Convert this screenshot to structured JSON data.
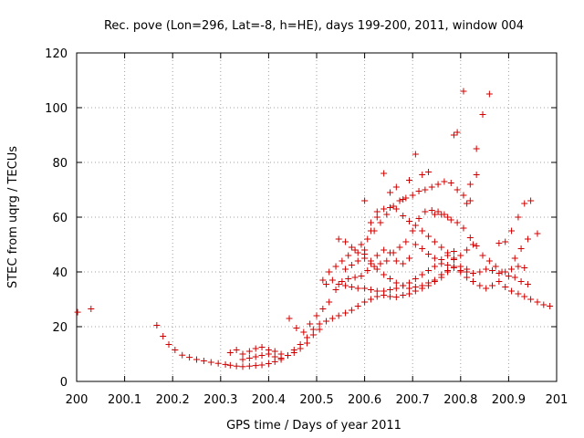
{
  "chart_data": {
    "type": "scatter",
    "title": "Rec. pove (Lon=296, Lat=-8, h=HE), days 199-200, 2011, window 004",
    "xlabel": "GPS time / Days of year 2011",
    "ylabel": "STEC from uqrg / TECUs",
    "xlim": [
      200,
      201
    ],
    "ylim": [
      0,
      120
    ],
    "xticks": [
      "200",
      "200.1",
      "200.2",
      "200.3",
      "200.4",
      "200.5",
      "200.6",
      "200.7",
      "200.8",
      "200.9",
      "201"
    ],
    "yticks": [
      "0",
      "20",
      "40",
      "60",
      "80",
      "100",
      "120"
    ],
    "grid": true,
    "marker": "+",
    "color": "#d00000",
    "series": [
      {
        "name": "STEC",
        "points": [
          [
            200.002,
            25.3
          ],
          [
            200.03,
            26.5
          ],
          [
            200.167,
            20.5
          ],
          [
            200.18,
            16.5
          ],
          [
            200.192,
            13.5
          ],
          [
            200.205,
            11.5
          ],
          [
            200.22,
            9.6
          ],
          [
            200.235,
            8.8
          ],
          [
            200.25,
            8.0
          ],
          [
            200.265,
            7.5
          ],
          [
            200.28,
            7.0
          ],
          [
            200.295,
            6.6
          ],
          [
            200.31,
            6.2
          ],
          [
            200.32,
            5.9
          ],
          [
            200.333,
            5.6
          ],
          [
            200.346,
            5.4
          ],
          [
            200.36,
            5.6
          ],
          [
            200.373,
            5.8
          ],
          [
            200.386,
            6.0
          ],
          [
            200.4,
            6.5
          ],
          [
            200.413,
            7.2
          ],
          [
            200.426,
            8.0
          ],
          [
            200.44,
            9.5
          ],
          [
            200.453,
            11.5
          ],
          [
            200.466,
            13.5
          ],
          [
            200.48,
            16.0
          ],
          [
            200.493,
            19.0
          ],
          [
            200.506,
            21.0
          ],
          [
            200.52,
            22.0
          ],
          [
            200.533,
            23.0
          ],
          [
            200.546,
            24.0
          ],
          [
            200.56,
            25.0
          ],
          [
            200.573,
            26.0
          ],
          [
            200.586,
            27.5
          ],
          [
            200.6,
            29.0
          ],
          [
            200.613,
            30.0
          ],
          [
            200.626,
            31.0
          ],
          [
            200.64,
            31.5
          ],
          [
            200.653,
            31.0
          ],
          [
            200.666,
            30.8
          ],
          [
            200.68,
            31.5
          ],
          [
            200.693,
            32.0
          ],
          [
            200.706,
            33.0
          ],
          [
            200.72,
            34.0
          ],
          [
            200.733,
            35.0
          ],
          [
            200.746,
            36.5
          ],
          [
            200.76,
            38.0
          ],
          [
            200.773,
            40.0
          ],
          [
            200.786,
            42.0
          ],
          [
            200.8,
            40.0
          ],
          [
            200.813,
            38.0
          ],
          [
            200.826,
            36.5
          ],
          [
            200.84,
            35.0
          ],
          [
            200.853,
            34.0
          ],
          [
            200.866,
            35.0
          ],
          [
            200.88,
            36.5
          ],
          [
            200.893,
            34.5
          ],
          [
            200.906,
            33.0
          ],
          [
            200.92,
            32.0
          ],
          [
            200.933,
            31.0
          ],
          [
            200.946,
            30.0
          ],
          [
            200.96,
            29.0
          ],
          [
            200.973,
            28.0
          ],
          [
            200.986,
            27.5
          ],
          [
            200.32,
            10.5
          ],
          [
            200.333,
            11.5
          ],
          [
            200.346,
            10.0
          ],
          [
            200.36,
            11.0
          ],
          [
            200.373,
            12.0
          ],
          [
            200.386,
            12.5
          ],
          [
            200.4,
            11.5
          ],
          [
            200.413,
            11.0
          ],
          [
            200.426,
            10.0
          ],
          [
            200.44,
            9.5
          ],
          [
            200.453,
            10.5
          ],
          [
            200.466,
            12.0
          ],
          [
            200.48,
            14.0
          ],
          [
            200.493,
            17.0
          ],
          [
            200.506,
            19.0
          ],
          [
            200.346,
            8.0
          ],
          [
            200.36,
            8.5
          ],
          [
            200.373,
            9.0
          ],
          [
            200.386,
            9.5
          ],
          [
            200.4,
            10.0
          ],
          [
            200.413,
            9.0
          ],
          [
            200.426,
            8.5
          ],
          [
            200.443,
            23.0
          ],
          [
            200.458,
            19.5
          ],
          [
            200.473,
            18.0
          ],
          [
            200.486,
            21.0
          ],
          [
            200.5,
            24.0
          ],
          [
            200.513,
            26.5
          ],
          [
            200.526,
            29.0
          ],
          [
            200.54,
            33.5
          ],
          [
            200.553,
            36.5
          ],
          [
            200.566,
            37.5
          ],
          [
            200.58,
            38.0
          ],
          [
            200.593,
            38.5
          ],
          [
            200.606,
            40.5
          ],
          [
            200.62,
            42.0
          ],
          [
            200.633,
            43.0
          ],
          [
            200.646,
            44.0
          ],
          [
            200.66,
            47.0
          ],
          [
            200.673,
            49.0
          ],
          [
            200.686,
            51.0
          ],
          [
            200.7,
            55.0
          ],
          [
            200.713,
            59.5
          ],
          [
            200.726,
            62.0
          ],
          [
            200.74,
            62.5
          ],
          [
            200.753,
            62.0
          ],
          [
            200.766,
            61.0
          ],
          [
            200.78,
            59.0
          ],
          [
            200.793,
            58.0
          ],
          [
            200.806,
            56.0
          ],
          [
            200.82,
            52.5
          ],
          [
            200.833,
            49.5
          ],
          [
            200.846,
            46.0
          ],
          [
            200.86,
            44.0
          ],
          [
            200.873,
            42.0
          ],
          [
            200.886,
            40.0
          ],
          [
            200.9,
            38.5
          ],
          [
            200.913,
            38.0
          ],
          [
            200.926,
            36.5
          ],
          [
            200.94,
            35.5
          ],
          [
            200.513,
            37.0
          ],
          [
            200.526,
            40.0
          ],
          [
            200.54,
            42.0
          ],
          [
            200.553,
            44.0
          ],
          [
            200.566,
            46.0
          ],
          [
            200.58,
            48.0
          ],
          [
            200.593,
            50.0
          ],
          [
            200.606,
            52.0
          ],
          [
            200.62,
            55.0
          ],
          [
            200.633,
            58.0
          ],
          [
            200.646,
            61.0
          ],
          [
            200.66,
            64.0
          ],
          [
            200.673,
            66.0
          ],
          [
            200.686,
            67.0
          ],
          [
            200.7,
            68.0
          ],
          [
            200.713,
            69.5
          ],
          [
            200.726,
            70.0
          ],
          [
            200.74,
            71.0
          ],
          [
            200.753,
            72.0
          ],
          [
            200.766,
            73.0
          ],
          [
            200.78,
            72.5
          ],
          [
            200.793,
            70.0
          ],
          [
            200.806,
            68.0
          ],
          [
            200.82,
            66.0
          ],
          [
            200.546,
            52.0
          ],
          [
            200.56,
            51.0
          ],
          [
            200.573,
            49.0
          ],
          [
            200.586,
            47.0
          ],
          [
            200.6,
            45.0
          ],
          [
            200.613,
            43.0
          ],
          [
            200.626,
            41.0
          ],
          [
            200.64,
            39.0
          ],
          [
            200.653,
            37.5
          ],
          [
            200.666,
            36.0
          ],
          [
            200.68,
            35.0
          ],
          [
            200.693,
            34.0
          ],
          [
            200.706,
            34.5
          ],
          [
            200.72,
            35.0
          ],
          [
            200.733,
            36.0
          ],
          [
            200.746,
            37.0
          ],
          [
            200.76,
            39.0
          ],
          [
            200.773,
            40.5
          ],
          [
            200.786,
            41.5
          ],
          [
            200.8,
            40.5
          ],
          [
            200.813,
            40.0
          ],
          [
            200.826,
            39.5
          ],
          [
            200.84,
            40.0
          ],
          [
            200.853,
            41.0
          ],
          [
            200.866,
            40.5
          ],
          [
            200.88,
            39.5
          ],
          [
            200.893,
            40.0
          ],
          [
            200.906,
            41.0
          ],
          [
            200.92,
            42.0
          ],
          [
            200.933,
            41.5
          ],
          [
            200.6,
            66.0
          ],
          [
            200.613,
            58.0
          ],
          [
            200.626,
            62.0
          ],
          [
            200.64,
            76.0
          ],
          [
            200.653,
            69.0
          ],
          [
            200.666,
            71.0
          ],
          [
            200.68,
            66.5
          ],
          [
            200.693,
            73.5
          ],
          [
            200.706,
            83.0
          ],
          [
            200.72,
            75.5
          ],
          [
            200.733,
            76.5
          ],
          [
            200.746,
            61.0
          ],
          [
            200.76,
            61.0
          ],
          [
            200.773,
            60.0
          ],
          [
            200.786,
            90.0
          ],
          [
            200.793,
            91.0
          ],
          [
            200.806,
            106.0
          ],
          [
            200.82,
            72.0
          ],
          [
            200.833,
            85.0
          ],
          [
            200.846,
            97.5
          ],
          [
            200.86,
            105.0
          ],
          [
            200.833,
            75.5
          ],
          [
            200.813,
            65.0
          ],
          [
            200.6,
            46.5
          ],
          [
            200.613,
            44.0
          ],
          [
            200.626,
            46.0
          ],
          [
            200.64,
            48.0
          ],
          [
            200.653,
            47.0
          ],
          [
            200.666,
            44.0
          ],
          [
            200.68,
            43.0
          ],
          [
            200.693,
            45.0
          ],
          [
            200.706,
            50.0
          ],
          [
            200.72,
            48.5
          ],
          [
            200.733,
            46.5
          ],
          [
            200.746,
            45.0
          ],
          [
            200.76,
            43.0
          ],
          [
            200.773,
            42.5
          ],
          [
            200.786,
            44.5
          ],
          [
            200.8,
            46.0
          ],
          [
            200.813,
            48.0
          ],
          [
            200.826,
            50.0
          ],
          [
            200.88,
            50.5
          ],
          [
            200.893,
            51.0
          ],
          [
            200.906,
            55.0
          ],
          [
            200.92,
            60.0
          ],
          [
            200.933,
            65.0
          ],
          [
            200.946,
            66.0
          ],
          [
            200.96,
            54.0
          ],
          [
            200.94,
            52.0
          ],
          [
            200.913,
            45.0
          ],
          [
            200.926,
            48.5
          ],
          [
            200.52,
            35.5
          ],
          [
            200.533,
            37.0
          ],
          [
            200.546,
            35.5
          ],
          [
            200.56,
            35.0
          ],
          [
            200.573,
            34.5
          ],
          [
            200.586,
            34.0
          ],
          [
            200.6,
            34.0
          ],
          [
            200.613,
            33.5
          ],
          [
            200.626,
            33.0
          ],
          [
            200.64,
            33.0
          ],
          [
            200.653,
            33.5
          ],
          [
            200.666,
            34.0
          ],
          [
            200.68,
            35.0
          ],
          [
            200.693,
            36.0
          ],
          [
            200.706,
            37.5
          ],
          [
            200.72,
            39.0
          ],
          [
            200.733,
            40.5
          ],
          [
            200.746,
            42.0
          ],
          [
            200.76,
            44.5
          ],
          [
            200.773,
            46.0
          ],
          [
            200.786,
            47.5
          ],
          [
            200.56,
            41.0
          ],
          [
            200.573,
            42.5
          ],
          [
            200.586,
            44.0
          ],
          [
            200.6,
            48.0
          ],
          [
            200.613,
            55.0
          ],
          [
            200.626,
            60.0
          ],
          [
            200.64,
            63.0
          ],
          [
            200.653,
            63.5
          ],
          [
            200.666,
            63.0
          ],
          [
            200.68,
            60.5
          ],
          [
            200.693,
            58.5
          ],
          [
            200.706,
            57.0
          ],
          [
            200.72,
            55.0
          ],
          [
            200.733,
            53.0
          ],
          [
            200.746,
            51.0
          ],
          [
            200.76,
            49.0
          ],
          [
            200.773,
            47.0
          ],
          [
            200.786,
            45.0
          ],
          [
            200.8,
            42.0
          ],
          [
            200.813,
            41.0
          ]
        ]
      }
    ]
  }
}
